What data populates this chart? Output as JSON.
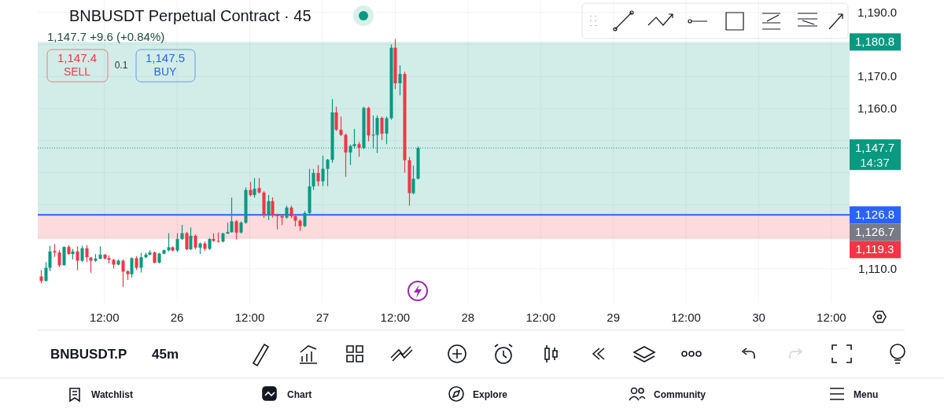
{
  "chart_data": {
    "type": "candlestick",
    "title": "BNBUSDT Perpetual Contract · 45",
    "subtitle": "1,147.7  +9.6 (+0.84%)",
    "x": [
      "--10-25T01:30",
      "--10-25T02:15",
      "--10-25T03:00",
      "--10-25T03:45",
      "--10-25T04:30",
      "--10-25T05:15",
      "--10-25T06:00",
      "--10-25T06:45",
      "--10-25T07:30",
      "--10-25T08:15",
      "--10-25T09:00",
      "--10-25T09:45",
      "--10-25T10:30",
      "--10-25T11:15",
      "--10-25T12:00",
      "--10-25T12:45",
      "--10-25T13:30",
      "--10-25T14:15",
      "--10-25T15:00",
      "--10-25T15:45",
      "--10-25T16:30",
      "--10-25T17:15",
      "--10-25T18:00",
      "--10-25T18:45",
      "--10-25T19:30",
      "--10-25T20:15",
      "--10-25T21:00",
      "--10-25T21:45",
      "--10-25T22:30",
      "--10-25T23:15",
      "--10-26T00:00",
      "--10-26T00:45",
      "--10-26T01:30",
      "--10-26T02:15",
      "--10-26T03:00",
      "--10-26T03:45",
      "--10-26T04:30",
      "--10-26T05:15",
      "--10-26T06:00",
      "--10-26T06:45",
      "--10-26T07:30",
      "--10-26T08:15",
      "--10-26T09:00",
      "--10-26T09:45",
      "--10-26T10:30",
      "--10-26T11:15",
      "--10-26T12:00",
      "--10-26T12:45",
      "--10-26T13:30",
      "--10-26T14:15",
      "--10-26T15:00",
      "--10-26T15:45",
      "--10-26T16:30",
      "--10-26T17:15",
      "--10-26T18:00",
      "--10-26T18:45",
      "--10-26T19:30",
      "--10-26T20:15",
      "--10-26T21:00",
      "--10-26T21:45",
      "--10-26T22:30",
      "--10-26T23:15",
      "--10-27T00:00",
      "--10-27T00:45",
      "--10-27T01:30",
      "--10-27T02:15",
      "--10-27T03:00",
      "--10-27T03:45",
      "--10-27T04:30",
      "--10-27T05:15",
      "--10-27T06:00",
      "--10-27T06:45",
      "--10-27T07:30",
      "--10-27T08:15",
      "--10-27T09:00",
      "--10-27T09:45",
      "--10-27T10:30",
      "--10-27T11:15",
      "--10-27T12:00",
      "--10-27T12:45",
      "--10-27T13:30",
      "--10-27T14:15",
      "--10-27T15:00",
      "--10-27T15:45"
    ],
    "ohlc": [
      [
        1107.6,
        1109.6,
        1105.5,
        1106.2
      ],
      [
        1106.2,
        1112.1,
        1106.0,
        1110.3
      ],
      [
        1110.3,
        1117.2,
        1109.2,
        1115.4
      ],
      [
        1115.5,
        1117.7,
        1113.7,
        1115.1
      ],
      [
        1115.1,
        1115.8,
        1110.5,
        1111.1
      ],
      [
        1111.1,
        1117.0,
        1111.0,
        1116.8
      ],
      [
        1116.8,
        1117.4,
        1114.4,
        1114.6
      ],
      [
        1114.6,
        1116.2,
        1112.9,
        1115.4
      ],
      [
        1115.4,
        1117.0,
        1109.6,
        1112.5
      ],
      [
        1112.5,
        1117.2,
        1112.1,
        1116.4
      ],
      [
        1116.4,
        1117.4,
        1112.1,
        1113.6
      ],
      [
        1113.5,
        1113.6,
        1108.7,
        1112.5
      ],
      [
        1112.5,
        1114.6,
        1112.1,
        1113.2
      ],
      [
        1113.1,
        1117.0,
        1113.0,
        1114.4
      ],
      [
        1114.4,
        1114.6,
        1112.9,
        1113.2
      ],
      [
        1113.3,
        1114.2,
        1111.7,
        1112.8
      ],
      [
        1112.8,
        1113.1,
        1110.1,
        1111.3
      ],
      [
        1111.3,
        1112.9,
        1111.1,
        1112.5
      ],
      [
        1112.5,
        1112.9,
        1104.3,
        1109.1
      ],
      [
        1109.2,
        1109.6,
        1106.5,
        1108.3
      ],
      [
        1108.3,
        1113.6,
        1107.2,
        1113.3
      ],
      [
        1113.3,
        1113.9,
        1109.6,
        1110.3
      ],
      [
        1110.3,
        1115.0,
        1108.8,
        1113.6
      ],
      [
        1113.6,
        1115.0,
        1113.3,
        1114.4
      ],
      [
        1114.4,
        1115.8,
        1114.2,
        1115.1
      ],
      [
        1115.1,
        1115.4,
        1111.7,
        1111.9
      ],
      [
        1111.9,
        1115.0,
        1111.7,
        1114.7
      ],
      [
        1114.7,
        1116.0,
        1114.5,
        1115.8
      ],
      [
        1115.8,
        1121.1,
        1115.4,
        1116.7
      ],
      [
        1116.7,
        1117.0,
        1115.4,
        1115.7
      ],
      [
        1115.7,
        1121.1,
        1115.2,
        1119.3
      ],
      [
        1119.3,
        1123.7,
        1119.0,
        1121.1
      ],
      [
        1121.1,
        1121.5,
        1115.8,
        1116.1
      ],
      [
        1116.1,
        1122.9,
        1115.8,
        1120.3
      ],
      [
        1120.3,
        1120.7,
        1116.0,
        1116.6
      ],
      [
        1116.6,
        1118.2,
        1114.6,
        1117.9
      ],
      [
        1117.9,
        1118.5,
        1115.6,
        1116.2
      ],
      [
        1116.2,
        1119.6,
        1115.9,
        1119.3
      ],
      [
        1119.3,
        1121.1,
        1118.4,
        1118.7
      ],
      [
        1118.7,
        1121.3,
        1118.2,
        1118.5
      ],
      [
        1118.5,
        1121.3,
        1118.2,
        1121.0
      ],
      [
        1121.0,
        1124.4,
        1120.8,
        1121.5
      ],
      [
        1121.4,
        1132.2,
        1121.3,
        1124.8
      ],
      [
        1124.8,
        1125.2,
        1119.1,
        1121.3
      ],
      [
        1121.3,
        1124.8,
        1121.0,
        1124.4
      ],
      [
        1124.4,
        1135.4,
        1124.0,
        1134.6
      ],
      [
        1134.6,
        1137.1,
        1132.6,
        1133.0
      ],
      [
        1133.0,
        1138.3,
        1132.2,
        1135.0
      ],
      [
        1135.2,
        1138.3,
        1133.4,
        1133.8
      ],
      [
        1133.8,
        1134.2,
        1125.9,
        1126.9
      ],
      [
        1126.9,
        1133.0,
        1125.2,
        1131.1
      ],
      [
        1131.1,
        1132.3,
        1126.0,
        1126.9
      ],
      [
        1126.9,
        1127.2,
        1122.3,
        1126.4
      ],
      [
        1126.5,
        1127.0,
        1123.6,
        1126.0
      ],
      [
        1126.0,
        1129.7,
        1125.6,
        1129.1
      ],
      [
        1129.1,
        1129.7,
        1125.8,
        1126.4
      ],
      [
        1126.4,
        1127.0,
        1123.2,
        1125.0
      ],
      [
        1125.0,
        1125.4,
        1121.8,
        1123.3
      ],
      [
        1123.3,
        1128.0,
        1123.0,
        1127.4
      ],
      [
        1127.4,
        1141.2,
        1127.0,
        1135.7
      ],
      [
        1135.7,
        1141.2,
        1134.6,
        1139.9
      ],
      [
        1139.9,
        1142.4,
        1135.8,
        1137.3
      ],
      [
        1137.3,
        1145.3,
        1135.8,
        1141.2
      ],
      [
        1141.2,
        1144.3,
        1135.8,
        1144.0
      ],
      [
        1144.0,
        1163.0,
        1143.1,
        1158.8
      ],
      [
        1158.8,
        1160.6,
        1153.0,
        1153.4
      ],
      [
        1153.4,
        1157.5,
        1151.4,
        1151.8
      ],
      [
        1151.8,
        1152.2,
        1138.7,
        1146.3
      ],
      [
        1146.3,
        1148.8,
        1142.4,
        1148.3
      ],
      [
        1148.3,
        1153.7,
        1147.5,
        1148.9
      ],
      [
        1148.9,
        1149.6,
        1144.9,
        1147.7
      ],
      [
        1147.7,
        1160.6,
        1147.3,
        1160.2
      ],
      [
        1160.2,
        1160.6,
        1149.8,
        1151.6
      ],
      [
        1151.6,
        1157.9,
        1147.5,
        1151.8
      ],
      [
        1151.8,
        1157.9,
        1146.1,
        1157.1
      ],
      [
        1157.1,
        1157.5,
        1150.2,
        1152.2
      ],
      [
        1152.2,
        1157.5,
        1148.9,
        1157.0
      ],
      [
        1157.0,
        1180.0,
        1156.5,
        1179.0
      ],
      [
        1179.0,
        1181.7,
        1166.1,
        1167.9
      ],
      [
        1167.9,
        1173.5,
        1164.1,
        1170.8
      ],
      [
        1170.8,
        1171.5,
        1140.0,
        1143.9
      ],
      [
        1143.9,
        1144.9,
        1129.7,
        1133.6
      ],
      [
        1133.6,
        1142.2,
        1133.2,
        1138.1
      ],
      [
        1138.1,
        1148.2,
        1137.9,
        1147.7
      ]
    ],
    "xlim": [
      "--10-25T01:00",
      "--10-30T15:00"
    ],
    "xticks": [
      {
        "value": "--10-25T12:00",
        "label": "12:00"
      },
      {
        "value": "--10-26",
        "label": "26"
      },
      {
        "value": "--10-26T12:00",
        "label": "12:00"
      },
      {
        "value": "--10-27",
        "label": "27"
      },
      {
        "value": "--10-27T12:00",
        "label": "12:00"
      },
      {
        "value": "--10-28",
        "label": "28"
      },
      {
        "value": "--10-28T12:00",
        "label": "12:00"
      },
      {
        "value": "--10-29",
        "label": "29"
      },
      {
        "value": "--10-29T12:00",
        "label": "12:00"
      },
      {
        "value": "--10-30",
        "label": "30"
      },
      {
        "value": "--10-30T12:00",
        "label": "12:00"
      }
    ],
    "ylim": [
      1099.4,
      1193.9
    ],
    "yticks": [
      {
        "value": 1110,
        "label": "1,110.0"
      },
      {
        "value": 1120,
        "label": null
      },
      {
        "value": 1130,
        "label": null
      },
      {
        "value": 1140,
        "label": null
      },
      {
        "value": 1150,
        "label": null
      },
      {
        "value": 1160,
        "label": "1,160.0"
      },
      {
        "value": 1170,
        "label": "1,170.0"
      },
      {
        "value": 1180,
        "label": null
      },
      {
        "value": 1190,
        "label": "1,190.0"
      }
    ],
    "grid": true,
    "ref_lines": [
      {
        "axis": "y",
        "value": 1147.7,
        "label": "1,147.7",
        "color": "#089981",
        "line_style": "dotted"
      },
      {
        "axis": "y",
        "value": 1126.8,
        "label": "1,126.8",
        "color": "#2962ff",
        "line_style": "solid"
      }
    ],
    "bands": [
      {
        "axis": "y",
        "from": 1126.8,
        "to": 1180.8,
        "label": "1,180.8",
        "color": "#089981"
      },
      {
        "axis": "y",
        "from": 1119.3,
        "to": 1126.8,
        "label": "1,119.3",
        "color": "#f23645"
      }
    ],
    "annotations": [
      "1,147.4",
      "SELL",
      "0.1",
      "1,147.5",
      "BUY",
      "14:37",
      "BNBUSDT.P",
      "45m",
      "Watchlist",
      "Chart",
      "Explore",
      "Community",
      "Menu",
      "1,126.7"
    ]
  }
}
